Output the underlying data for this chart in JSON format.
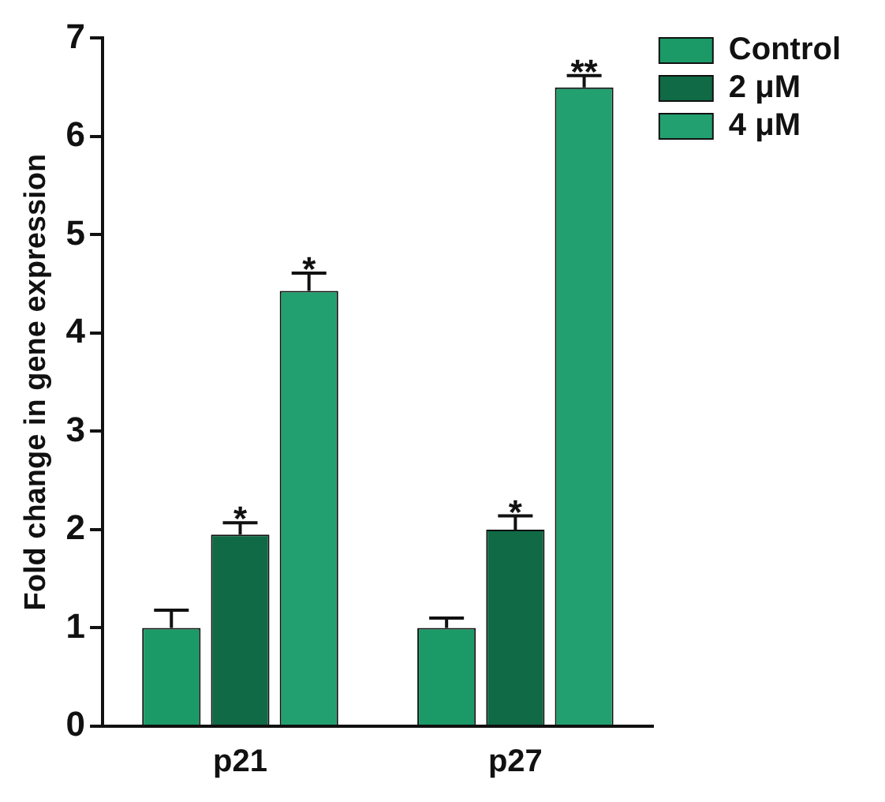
{
  "chart_data": {
    "type": "bar",
    "ylabel": "Fold change in gene expression",
    "categories": [
      "p21",
      "p27"
    ],
    "series": [
      {
        "name": "Control",
        "color": "#1b9a68",
        "values": [
          1.0,
          1.0
        ],
        "errors": [
          0.18,
          0.1
        ]
      },
      {
        "name": "2 μM",
        "color": "#0f6a45",
        "values": [
          1.95,
          2.0
        ],
        "errors": [
          0.12,
          0.14
        ],
        "value_labels": [
          "*",
          "*"
        ]
      },
      {
        "name": "4 μM",
        "color": "#22a070",
        "values": [
          4.43,
          6.5
        ],
        "errors": [
          0.18,
          0.12
        ],
        "value_labels": [
          "*",
          "**"
        ]
      }
    ],
    "ylim": [
      0,
      7
    ],
    "yticks": [
      0,
      1,
      2,
      3,
      4,
      5,
      6,
      7
    ],
    "grid": false,
    "legend": "top right"
  }
}
